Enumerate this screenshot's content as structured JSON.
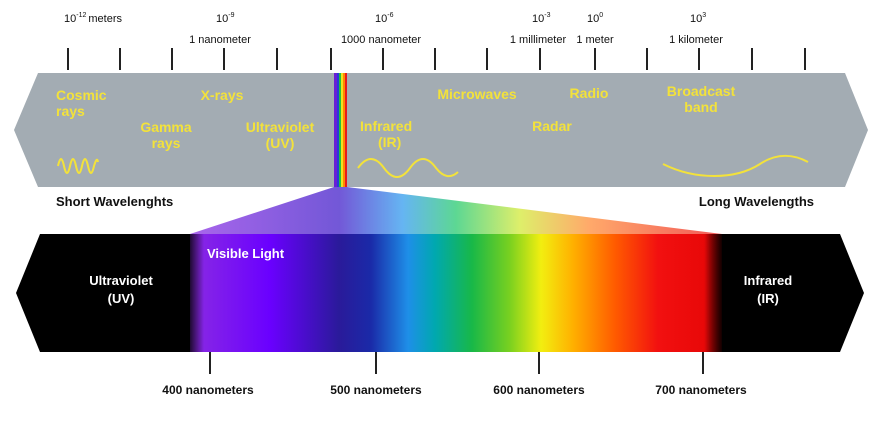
{
  "scale": [
    {
      "base": "10",
      "exp": "-12",
      "unit": "meters",
      "name": ""
    },
    {
      "base": "10",
      "exp": "-9",
      "unit": "",
      "name": "1 nanometer"
    },
    {
      "base": "10",
      "exp": "-6",
      "unit": "",
      "name": "1000 nanometer"
    },
    {
      "base": "10",
      "exp": "-3",
      "unit": "",
      "name": "1 millimeter"
    },
    {
      "base": "10",
      "exp": "0",
      "unit": "",
      "name": "1 meter"
    },
    {
      "base": "10",
      "exp": "3",
      "unit": "",
      "name": "1 kilometer"
    }
  ],
  "bands": [
    {
      "line1": "Cosmic",
      "line2": "rays"
    },
    {
      "line1": "Gamma",
      "line2": "rays"
    },
    {
      "line1": "X-rays",
      "line2": ""
    },
    {
      "line1": "Ultraviolet",
      "line2": "(UV)"
    },
    {
      "line1": "Infrared",
      "line2": "(IR)"
    },
    {
      "line1": "Microwaves",
      "line2": ""
    },
    {
      "line1": "Radar",
      "line2": ""
    },
    {
      "line1": "Radio",
      "line2": ""
    },
    {
      "line1": "Broadcast",
      "line2": "band"
    }
  ],
  "short_label": "Short Wavelenghts",
  "long_label": "Long Wavelengths",
  "visible_label": "Visible Light",
  "uv": {
    "line1": "Ultraviolet",
    "line2": "(UV)"
  },
  "ir": {
    "line1": "Infrared",
    "line2": "(IR)"
  },
  "nanometers": [
    "400 nanometers",
    "500 nanometers",
    "600 nanometers",
    "700 nanometers"
  ],
  "colors": {
    "band_fill": "#a3acb3",
    "band_text": "#f3e23a",
    "spectrum_ends": "#000000"
  }
}
